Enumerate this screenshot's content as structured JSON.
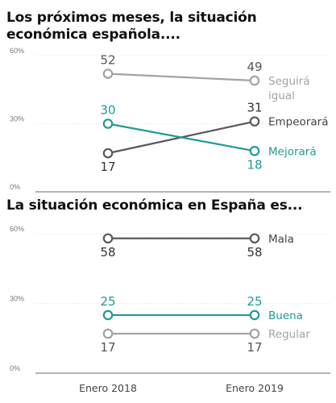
{
  "colors": {
    "gray": "#a3a3a3",
    "dark": "#595959",
    "teal": "#1f9b95",
    "axis": "#888888",
    "grid": "#e4e4e4"
  },
  "chart_data": [
    {
      "type": "line",
      "title": "Los próximos meses, la situación económica española....",
      "categories": [
        "Enero 2018",
        "Enero 2019"
      ],
      "ylim": [
        0,
        60
      ],
      "yticks": [
        "0%",
        "30%",
        "60%"
      ],
      "series": [
        {
          "name": "Seguirá igual",
          "label_lines": [
            "Seguirá",
            "igual"
          ],
          "values": [
            52,
            49
          ],
          "color": "gray"
        },
        {
          "name": "Empeorará",
          "label_lines": [
            "Empeorará"
          ],
          "values": [
            17,
            31
          ],
          "color": "dark"
        },
        {
          "name": "Mejorará",
          "label_lines": [
            "Mejorará"
          ],
          "values": [
            30,
            18
          ],
          "color": "teal"
        }
      ]
    },
    {
      "type": "line",
      "title": "La situación económica en España es...",
      "categories": [
        "Enero 2018",
        "Enero 2019"
      ],
      "ylim": [
        0,
        60
      ],
      "yticks": [
        "0%",
        "30%",
        "60%"
      ],
      "series": [
        {
          "name": "Mala",
          "label_lines": [
            "Mala"
          ],
          "values": [
            58,
            58
          ],
          "color": "dark"
        },
        {
          "name": "Buena",
          "label_lines": [
            "Buena"
          ],
          "values": [
            25,
            25
          ],
          "color": "teal"
        },
        {
          "name": "Regular",
          "label_lines": [
            "Regular"
          ],
          "values": [
            17,
            17
          ],
          "color": "gray"
        }
      ]
    }
  ]
}
